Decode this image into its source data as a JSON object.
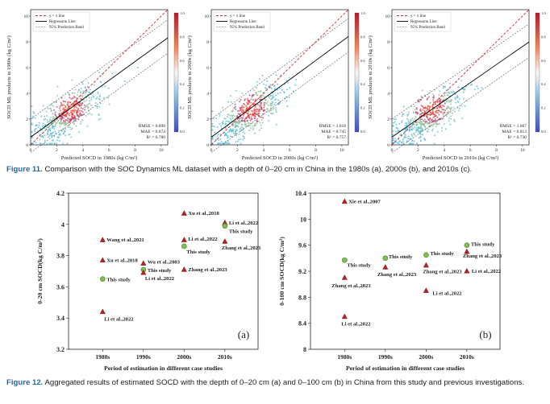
{
  "figure11": {
    "panels": [
      {
        "id": "1980s",
        "ylabel": "SOCD ML products in 1980s (kg C/m²)",
        "xlabel": "Predicted SOCD in 1980s (kg C/m²)",
        "stats": [
          "RMSE = 0.898",
          "MAE = 0.674",
          "R² = 0.780"
        ]
      },
      {
        "id": "2000s",
        "ylabel": "SOCD ML products in 2000s (kg C/m²)",
        "xlabel": "Predicted SOCD in 2000s (kg C/m²)",
        "stats": [
          "RMSE = 1.018",
          "MAE = 0.745",
          "R² = 0.757"
        ]
      },
      {
        "id": "2010s",
        "ylabel": "SOCD ML products in 2010s (kg C/m²)",
        "xlabel": "Predicted SOCD in 2010s (kg C/m²)",
        "stats": [
          "RMSE = 1.067",
          "MAE = 0.813",
          "R² = 0.730"
        ]
      }
    ],
    "legend": [
      "y = x line",
      "Regression Line",
      "95% Prediction Band"
    ],
    "x_ticks": [
      "0",
      "2",
      "4",
      "6",
      "8",
      "10"
    ],
    "y_ticks": [
      "0",
      "2",
      "4",
      "6",
      "8",
      "10"
    ],
    "colorbar_ticks": [
      "1.0",
      "0.8",
      "0.6",
      "0.4",
      "0.2",
      "0.0"
    ],
    "caption_label": "Figure 11.",
    "caption_text": " Comparison with the SOC Dynamics ML dataset with a depth of 0–20 cm in China in the 1980s (a), 2000s (b), and 2010s (c)."
  },
  "chart_data": [
    {
      "type": "scatter",
      "title": "(a)",
      "xlabel": "Period of estimation in different case studies",
      "ylabel": "0-20 cm SOCD(kg C/m²)",
      "categories": [
        "1980s",
        "1990s",
        "2000s",
        "2010s"
      ],
      "ylim": [
        3.2,
        4.2
      ],
      "y_ticks": [
        "4.2",
        "4",
        "3.8",
        "3.6",
        "3.4",
        "3.2"
      ],
      "points": [
        {
          "label": "Wang et al.,2021",
          "x": "1980s",
          "y": 3.9,
          "marker": "triangle"
        },
        {
          "label": "Xu et al.,2018",
          "x": "1980s",
          "y": 3.77,
          "marker": "triangle"
        },
        {
          "label": "This study",
          "x": "1980s",
          "y": 3.65,
          "marker": "circle"
        },
        {
          "label": "Li et al.,2022",
          "x": "1980s",
          "y": 3.44,
          "marker": "triangle"
        },
        {
          "label": "Wu et al.,2003",
          "x": "1990s",
          "y": 3.75,
          "marker": "triangle"
        },
        {
          "label": "This study",
          "x": "1990s",
          "y": 3.71,
          "marker": "circle"
        },
        {
          "label": "Li et al.,2022",
          "x": "1990s",
          "y": 3.69,
          "marker": "triangle"
        },
        {
          "label": "Xu et al.,2018",
          "x": "2000s",
          "y": 4.07,
          "marker": "triangle"
        },
        {
          "label": "Li et al.,2022",
          "x": "2000s",
          "y": 3.9,
          "marker": "triangle"
        },
        {
          "label": "This study",
          "x": "2000s",
          "y": 3.86,
          "marker": "circle"
        },
        {
          "label": "Zhang et al.,2023",
          "x": "2000s",
          "y": 3.71,
          "marker": "triangle"
        },
        {
          "label": "Li et al.,2022",
          "x": "2010s",
          "y": 4.01,
          "marker": "triangle"
        },
        {
          "label": "This study",
          "x": "2010s",
          "y": 3.99,
          "marker": "circle"
        },
        {
          "label": "Zhang et al.,2023",
          "x": "2010s",
          "y": 3.89,
          "marker": "triangle"
        }
      ]
    },
    {
      "type": "scatter",
      "title": "(b)",
      "xlabel": "Period of estimation in different case studies",
      "ylabel": "0-100 cm SOCD(kg C/m²)",
      "categories": [
        "1980s",
        "1990s",
        "2000s",
        "2010s"
      ],
      "ylim": [
        8.0,
        10.4
      ],
      "y_ticks": [
        "10.4",
        "10",
        "9.6",
        "9.2",
        "8.8",
        "8.4",
        "8"
      ],
      "points": [
        {
          "label": "Xie et al.,2007",
          "x": "1980s",
          "y": 10.27,
          "marker": "triangle"
        },
        {
          "label": "This study",
          "x": "1980s",
          "y": 9.37,
          "marker": "circle"
        },
        {
          "label": "Zhang et al.,2023",
          "x": "1980s",
          "y": 9.1,
          "marker": "triangle"
        },
        {
          "label": "Li et al.,2022",
          "x": "1980s",
          "y": 8.5,
          "marker": "triangle"
        },
        {
          "label": "This study",
          "x": "1990s",
          "y": 9.4,
          "marker": "circle"
        },
        {
          "label": "Zhang et al.,2023",
          "x": "1990s",
          "y": 9.26,
          "marker": "triangle"
        },
        {
          "label": "This study",
          "x": "2000s",
          "y": 9.45,
          "marker": "circle"
        },
        {
          "label": "Zhang et al.,2023",
          "x": "2000s",
          "y": 9.29,
          "marker": "triangle"
        },
        {
          "label": "Li et al.,2022",
          "x": "2000s",
          "y": 8.9,
          "marker": "triangle"
        },
        {
          "label": "This study",
          "x": "2010s",
          "y": 9.6,
          "marker": "circle"
        },
        {
          "label": "Zhang et al.,2023",
          "x": "2010s",
          "y": 9.5,
          "marker": "triangle"
        },
        {
          "label": "Li et al.,2022",
          "x": "2010s",
          "y": 9.2,
          "marker": "triangle"
        }
      ]
    }
  ],
  "figure12": {
    "caption_label": "Figure 12.",
    "caption_text": " Aggregated results of estimated SOCD with the depth of 0–20 cm (a) and 0–100 cm (b) in China from this study and previous investigations."
  }
}
